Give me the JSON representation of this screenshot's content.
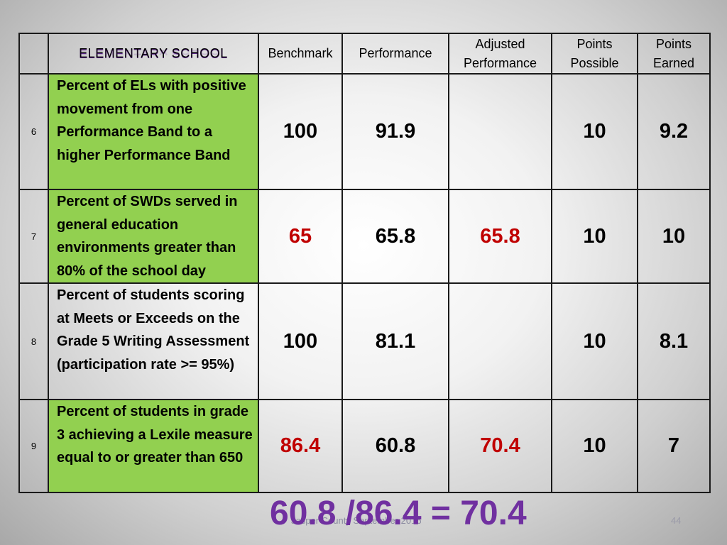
{
  "header": {
    "title": "ELEMENTARY SCHOOL",
    "columns": {
      "benchmark": "Benchmark",
      "performance": "Performance",
      "adjusted_line1": "Adjusted",
      "adjusted_line2": "Performance",
      "possible_line1": "Points",
      "possible_line2": "Possible",
      "earned_line1": "Points",
      "earned_line2": "Earned"
    }
  },
  "rows": [
    {
      "number": "6",
      "description": "Percent of ELs with positive movement from one Performance Band to a higher Performance Band",
      "benchmark": "100",
      "performance": "91.9",
      "adjusted": "",
      "points_possible": "10",
      "points_earned": "9.2"
    },
    {
      "number": "7",
      "description": "Percent of SWDs served in general education environments greater than 80% of the school day",
      "benchmark": "65",
      "performance": "65.8",
      "adjusted": "65.8",
      "points_possible": "10",
      "points_earned": "10"
    },
    {
      "number": "8",
      "description": "Percent of students scoring at Meets or Exceeds on the Grade 5 Writing Assessment (participation rate >= 95%)",
      "benchmark": "100",
      "performance": "81.1",
      "adjusted": "",
      "points_possible": "10",
      "points_earned": "8.1"
    },
    {
      "number": "9",
      "description": "Percent of students in grade 3 achieving a Lexile measure equal to or greater than 650",
      "benchmark": "86.4",
      "performance": "60.8",
      "adjusted": "70.4",
      "points_possible": "10",
      "points_earned": "7"
    }
  ],
  "formula": "60.8 /86.4 = 70.4",
  "footer": "Jasper County September 2016",
  "slide_number": "44",
  "colors": {
    "title_purple": "#7030a0",
    "highlight_red": "#c00000",
    "green_fill": "#92d050"
  }
}
